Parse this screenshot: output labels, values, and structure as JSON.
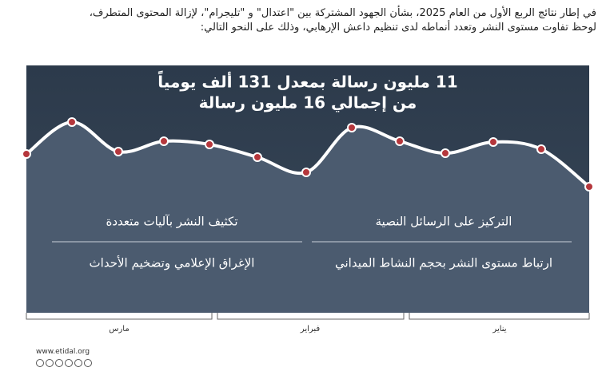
{
  "header": {
    "lines": [
      "في إطار نتائج الربع الأول من العام 2025، بشأن الجهود المشتركة بين \"اعتدال\" و \"تليجرام\"، لإزالة المحتوى المتطرف،",
      "لوحظ تفاوت مستوى النشر وتعدد أنماطه لدى تنظيم داعش الإرهابي، وذلك على النحو التالي:"
    ]
  },
  "highlight": {
    "lines": [
      "11 مليون رسالة بمعدل 131 ألف يومياً",
      "من إجمالي 16 مليون رسالة"
    ]
  },
  "points": [
    [
      "التركيز على الرسائل النصية",
      "تكثيف النشر بآليات متعددة"
    ],
    [
      "ارتباط مستوى النشر بحجم النشاط الميداني",
      "الإغراق الإعلامي وتضخيم الأحداث"
    ]
  ],
  "timeline": [
    "يناير",
    "فبراير",
    "مارس"
  ],
  "footer": {
    "url": "www.etidal.org"
  }
}
